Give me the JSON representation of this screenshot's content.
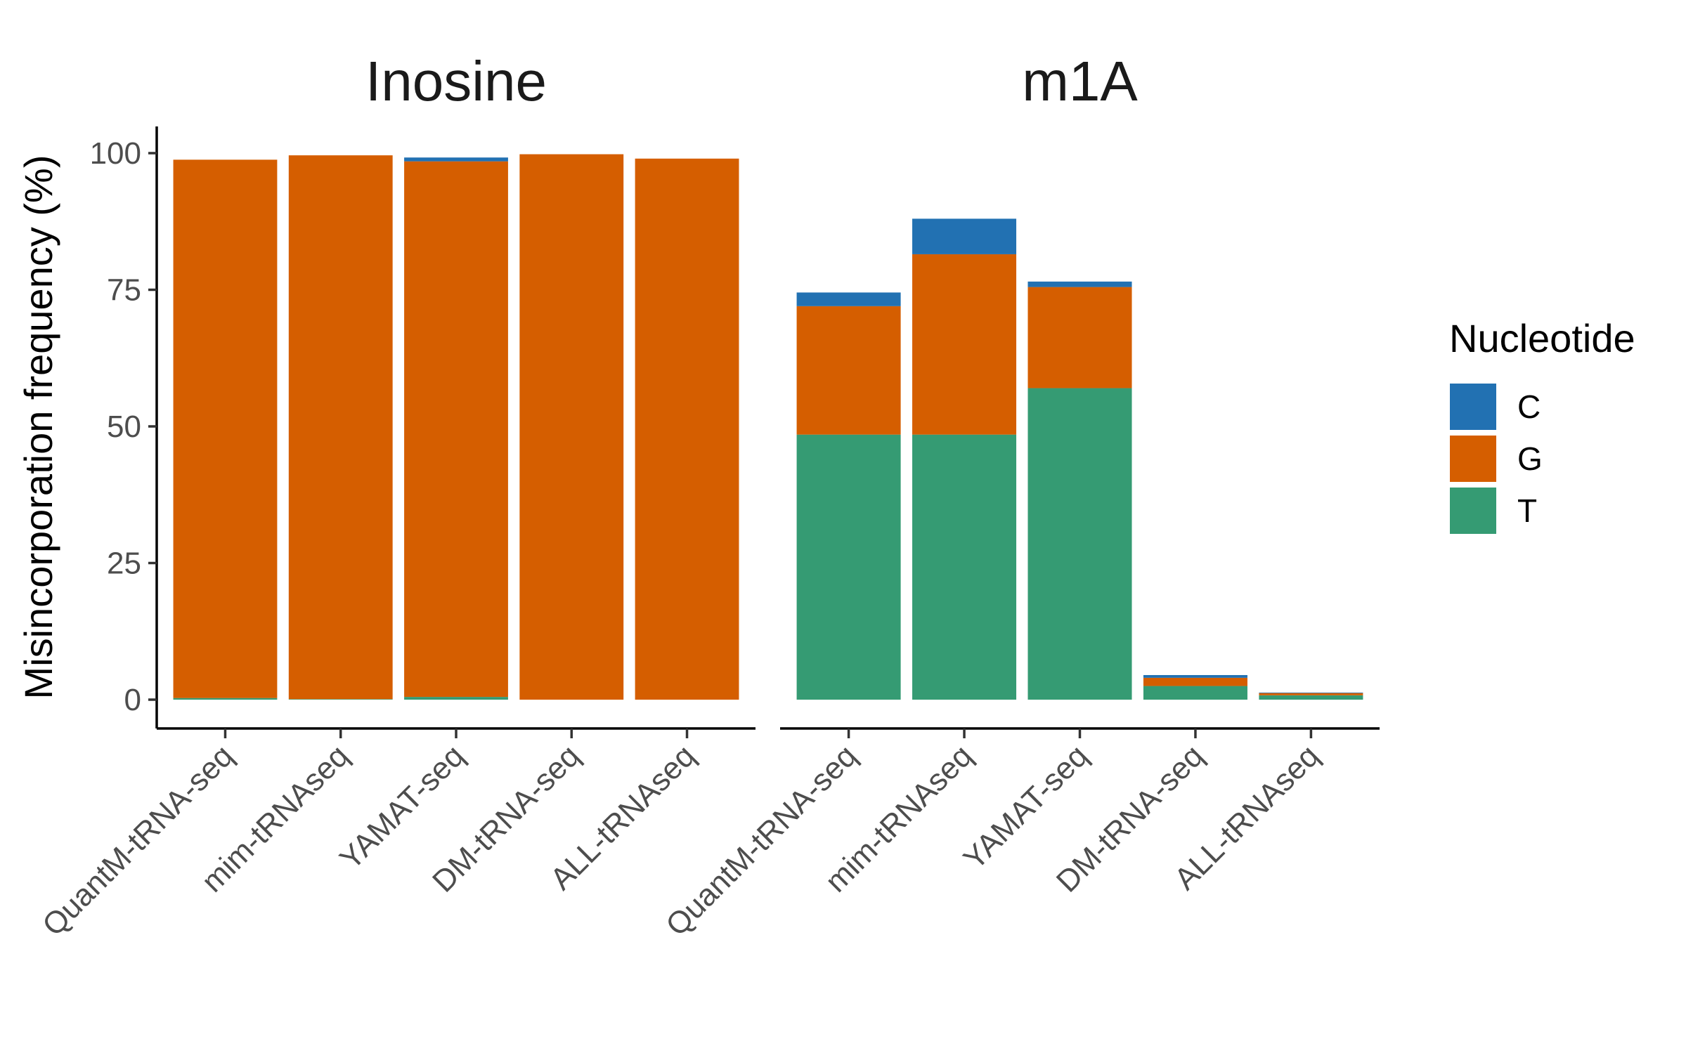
{
  "chart_data": {
    "type": "bar",
    "stacked": true,
    "ylabel": "Misincorporation frequency (%)",
    "xlabel": "",
    "ylim": [
      0,
      105
    ],
    "yticks": [
      0,
      25,
      50,
      75,
      100
    ],
    "grid": false,
    "legend": {
      "title": "Nucleotide",
      "position": "right",
      "entries": [
        "C",
        "G",
        "T"
      ]
    },
    "colors": {
      "C": "#2271B2",
      "G": "#D55E00",
      "T": "#359B73"
    },
    "categories": [
      "QuantM-tRNA-seq",
      "mim-tRNAseq",
      "YAMAT-seq",
      "DM-tRNA-seq",
      "ALL-tRNAseq"
    ],
    "facets": [
      {
        "title": "Inosine",
        "series": [
          {
            "name": "T",
            "values": [
              0.3,
              0.1,
              0.5,
              0.0,
              0.0
            ]
          },
          {
            "name": "G",
            "values": [
              98.5,
              99.5,
              98.0,
              99.8,
              99.0
            ]
          },
          {
            "name": "C",
            "values": [
              0.0,
              0.0,
              0.7,
              0.0,
              0.0
            ]
          }
        ]
      },
      {
        "title": "m1A",
        "series": [
          {
            "name": "T",
            "values": [
              48.5,
              48.5,
              57.0,
              2.5,
              0.8
            ]
          },
          {
            "name": "G",
            "values": [
              23.5,
              33.0,
              18.5,
              1.5,
              0.4
            ]
          },
          {
            "name": "C",
            "values": [
              2.5,
              6.5,
              1.0,
              0.5,
              0.1
            ]
          }
        ]
      }
    ]
  }
}
